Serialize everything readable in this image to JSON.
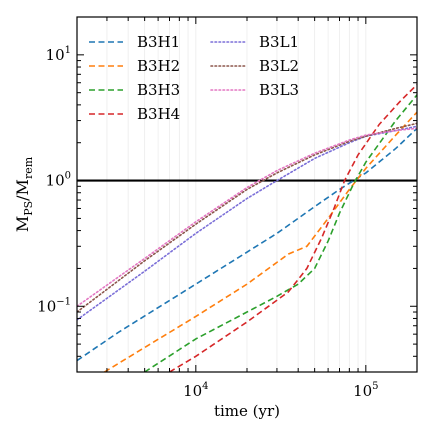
{
  "chart_data": {
    "type": "line",
    "title": "",
    "xlabel": "time (yr)",
    "ylabel": {
      "base": "M",
      "sub1": "PS",
      "sep": "/M",
      "sub2": "rem"
    },
    "xscale": "log",
    "yscale": "log",
    "xlim": [
      2000,
      200000
    ],
    "ylim": [
      0.03,
      20
    ],
    "grid": "faint vertical minor gridlines",
    "reference_line": {
      "y": 1.0,
      "color": "#000000"
    },
    "x_ticks": [
      {
        "value": 10000,
        "base": "10",
        "exp": "4"
      },
      {
        "value": 100000,
        "base": "10",
        "exp": "5"
      }
    ],
    "y_ticks": [
      {
        "value": 0.1,
        "base": "10",
        "exp": "−1"
      },
      {
        "value": 1,
        "base": "10",
        "exp": "0"
      },
      {
        "value": 10,
        "base": "10",
        "exp": "1"
      }
    ],
    "legend": {
      "placement": "top-left",
      "columns": 2
    },
    "series": [
      {
        "name": "B3H1",
        "color": "#1f77b4",
        "dash": "dashed",
        "legend_col": 0,
        "legend_row": 0,
        "points": [
          [
            2000,
            0.037
          ],
          [
            3500,
            0.062
          ],
          [
            10000,
            0.15
          ],
          [
            30000,
            0.38
          ],
          [
            50000,
            0.62
          ],
          [
            70000,
            0.85
          ],
          [
            100000,
            1.15
          ],
          [
            150000,
            1.8
          ],
          [
            200000,
            2.6
          ]
        ]
      },
      {
        "name": "B3H2",
        "color": "#ff7f0e",
        "dash": "dashed",
        "legend_col": 0,
        "legend_row": 1,
        "points": [
          [
            2900,
            0.03
          ],
          [
            5000,
            0.047
          ],
          [
            10000,
            0.083
          ],
          [
            20000,
            0.15
          ],
          [
            35000,
            0.26
          ],
          [
            45000,
            0.3
          ],
          [
            60000,
            0.5
          ],
          [
            80000,
            0.85
          ],
          [
            100000,
            1.25
          ],
          [
            150000,
            2.3
          ],
          [
            200000,
            3.5
          ]
        ]
      },
      {
        "name": "B3H3",
        "color": "#2ca02c",
        "dash": "dashed",
        "legend_col": 0,
        "legend_row": 2,
        "points": [
          [
            5000,
            0.03
          ],
          [
            10000,
            0.055
          ],
          [
            20000,
            0.09
          ],
          [
            30000,
            0.12
          ],
          [
            40000,
            0.15
          ],
          [
            50000,
            0.2
          ],
          [
            60000,
            0.33
          ],
          [
            70000,
            0.55
          ],
          [
            85000,
            0.95
          ],
          [
            100000,
            1.4
          ],
          [
            150000,
            3.0
          ],
          [
            200000,
            4.8
          ]
        ]
      },
      {
        "name": "B3H4",
        "color": "#d62728",
        "dash": "dashed",
        "legend_col": 0,
        "legend_row": 3,
        "points": [
          [
            7000,
            0.03
          ],
          [
            10000,
            0.04
          ],
          [
            20000,
            0.075
          ],
          [
            35000,
            0.13
          ],
          [
            45000,
            0.2
          ],
          [
            55000,
            0.35
          ],
          [
            65000,
            0.6
          ],
          [
            75000,
            1.0
          ],
          [
            90000,
            1.6
          ],
          [
            120000,
            2.8
          ],
          [
            160000,
            4.3
          ],
          [
            200000,
            5.8
          ]
        ]
      },
      {
        "name": "B3L1",
        "color": "#7b6fd8",
        "dash": "dotted",
        "legend_col": 1,
        "legend_row": 0,
        "points": [
          [
            2000,
            0.078
          ],
          [
            5000,
            0.19
          ],
          [
            10000,
            0.38
          ],
          [
            20000,
            0.72
          ],
          [
            30000,
            1.0
          ],
          [
            50000,
            1.5
          ],
          [
            80000,
            2.0
          ],
          [
            100000,
            2.25
          ],
          [
            150000,
            2.5
          ],
          [
            200000,
            2.7
          ]
        ]
      },
      {
        "name": "B3L2",
        "color": "#8c564b",
        "dash": "dotted",
        "legend_col": 1,
        "legend_row": 1,
        "points": [
          [
            2000,
            0.09
          ],
          [
            5000,
            0.23
          ],
          [
            10000,
            0.45
          ],
          [
            20000,
            0.85
          ],
          [
            30000,
            1.15
          ],
          [
            50000,
            1.6
          ],
          [
            80000,
            2.05
          ],
          [
            100000,
            2.25
          ],
          [
            150000,
            2.6
          ],
          [
            200000,
            2.85
          ]
        ]
      },
      {
        "name": "B3L3",
        "color": "#e377c2",
        "dash": "dotted",
        "legend_col": 1,
        "legend_row": 2,
        "points": [
          [
            2000,
            0.1
          ],
          [
            5000,
            0.24
          ],
          [
            10000,
            0.47
          ],
          [
            20000,
            0.88
          ],
          [
            30000,
            1.2
          ],
          [
            50000,
            1.65
          ],
          [
            80000,
            2.1
          ],
          [
            100000,
            2.3
          ],
          [
            150000,
            2.5
          ],
          [
            200000,
            2.6
          ]
        ]
      }
    ]
  }
}
